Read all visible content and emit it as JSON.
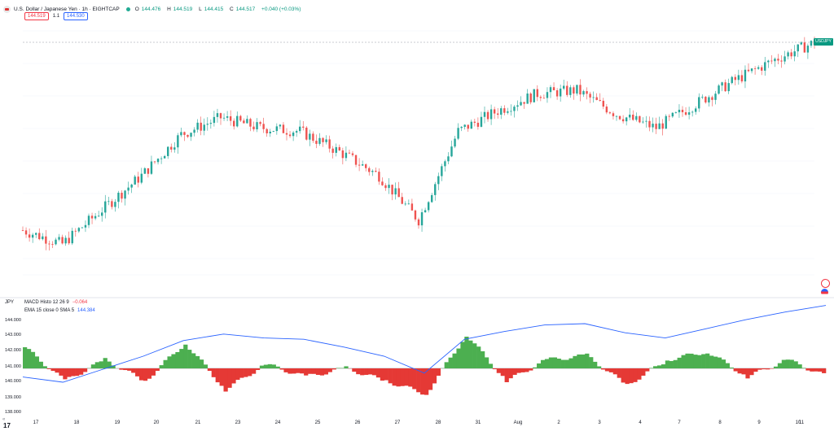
{
  "header": {
    "title": "U.S. Dollar / Japanese Yen · 1h · EIGHTCAP",
    "ohlc": {
      "o_label": "O",
      "o": "144.476",
      "h_label": "H",
      "h": "144.519",
      "l_label": "L",
      "l": "144.415",
      "c_label": "C",
      "c": "144.517",
      "change": "+0.040 (+0.03%)"
    },
    "sell_price": "144.519",
    "spread": "1.1",
    "buy_price": "144.530"
  },
  "symbol_tag": "USDJPY",
  "indicators": {
    "pane_label": "JPY",
    "macd_label": "MACD Histo 12 26 9",
    "macd_value": "−0.064",
    "ema_label": "EMA 15 close 0 SMA 5",
    "ema_value": "144.384"
  },
  "lower_axis": [
    "144.000",
    "143.000",
    "142.000",
    "141.000",
    "140.000",
    "139.000",
    "138.000"
  ],
  "x_axis": [
    "17",
    "18",
    "19",
    "20",
    "21",
    "23",
    "24",
    "25",
    "26",
    "27",
    "28",
    "31",
    "Aug",
    "2",
    "3",
    "4",
    "7",
    "8",
    "9",
    "10",
    "11"
  ],
  "colors": {
    "up": "#26a69a",
    "down": "#ef5350",
    "hist_up": "#4caf50",
    "hist_down": "#e53935",
    "ema_line": "#2962ff",
    "tag": "#089981"
  },
  "chart_data": [
    {
      "type": "line",
      "name_hint": "candlestick price USDJPY 1h",
      "x": [
        "17",
        "18",
        "19",
        "20",
        "21",
        "23",
        "24",
        "25",
        "26",
        "27",
        "28",
        "31",
        "Aug",
        "2",
        "3",
        "4",
        "7",
        "8",
        "9",
        "10",
        "11"
      ],
      "series": [
        {
          "values": [
            139.0,
            138.6,
            139.6,
            140.6,
            141.8,
            142.3,
            142.0,
            141.9,
            141.3,
            140.6,
            139.3,
            141.9,
            142.5,
            143.0,
            143.1,
            142.4,
            142.0,
            142.7,
            143.4,
            144.0,
            144.5
          ]
        }
      ]
    },
    {
      "type": "bar",
      "name_hint": "MACD histogram",
      "x": [
        "17",
        "18",
        "19",
        "20",
        "21",
        "23",
        "24",
        "25",
        "26",
        "27",
        "28",
        "31",
        "Aug",
        "2",
        "3",
        "4",
        "7",
        "8",
        "9",
        "10",
        "11"
      ],
      "series": [
        {
          "values": [
            0.5,
            -0.3,
            0.2,
            -0.3,
            0.6,
            -0.5,
            0.1,
            -0.2,
            0.0,
            -0.3,
            -0.6,
            0.8,
            -0.3,
            0.2,
            0.3,
            -0.4,
            0.2,
            0.4,
            -0.2,
            0.2,
            -0.2
          ]
        }
      ]
    }
  ]
}
